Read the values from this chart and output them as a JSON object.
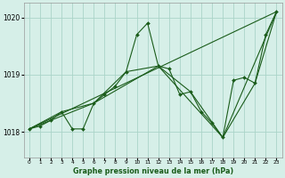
{
  "bg_color": "#d6efe8",
  "grid_color": "#aad4c8",
  "line_color": "#1a5c1a",
  "title": "Graphe pression niveau de la mer (hPa)",
  "xlim": [
    -0.5,
    23.5
  ],
  "ylim": [
    1017.55,
    1020.25
  ],
  "yticks": [
    1018,
    1019,
    1020
  ],
  "xticks": [
    0,
    1,
    2,
    3,
    4,
    5,
    6,
    7,
    8,
    9,
    10,
    11,
    12,
    13,
    14,
    15,
    16,
    17,
    18,
    19,
    20,
    21,
    22,
    23
  ],
  "series": [
    {
      "x": [
        0,
        1,
        2,
        3,
        4,
        5,
        6,
        7,
        8,
        9,
        10,
        11,
        12,
        13,
        14,
        15,
        16,
        17,
        18,
        19,
        20,
        21,
        22,
        23
      ],
      "y": [
        1018.05,
        1018.1,
        1018.2,
        1018.35,
        1018.05,
        1018.05,
        1018.5,
        1018.65,
        1018.8,
        1019.05,
        1019.7,
        1019.9,
        1019.15,
        1019.1,
        1018.65,
        1018.7,
        1018.35,
        1018.15,
        1017.9,
        1018.9,
        1018.95,
        1018.85,
        1019.7,
        1020.1
      ],
      "marker": "D",
      "linewidth": 0.8,
      "markersize": 2.0
    },
    {
      "x": [
        0,
        3,
        6,
        9,
        12,
        15,
        18,
        21,
        23
      ],
      "y": [
        1018.05,
        1018.35,
        1018.5,
        1019.05,
        1019.15,
        1018.7,
        1017.9,
        1018.85,
        1020.1
      ],
      "marker": null,
      "linewidth": 0.8,
      "markersize": 0
    },
    {
      "x": [
        0,
        6,
        12,
        18,
        23
      ],
      "y": [
        1018.05,
        1018.5,
        1019.15,
        1017.9,
        1020.1
      ],
      "marker": null,
      "linewidth": 0.8,
      "markersize": 0
    },
    {
      "x": [
        0,
        23
      ],
      "y": [
        1018.05,
        1020.1
      ],
      "marker": null,
      "linewidth": 0.8,
      "markersize": 0
    }
  ]
}
